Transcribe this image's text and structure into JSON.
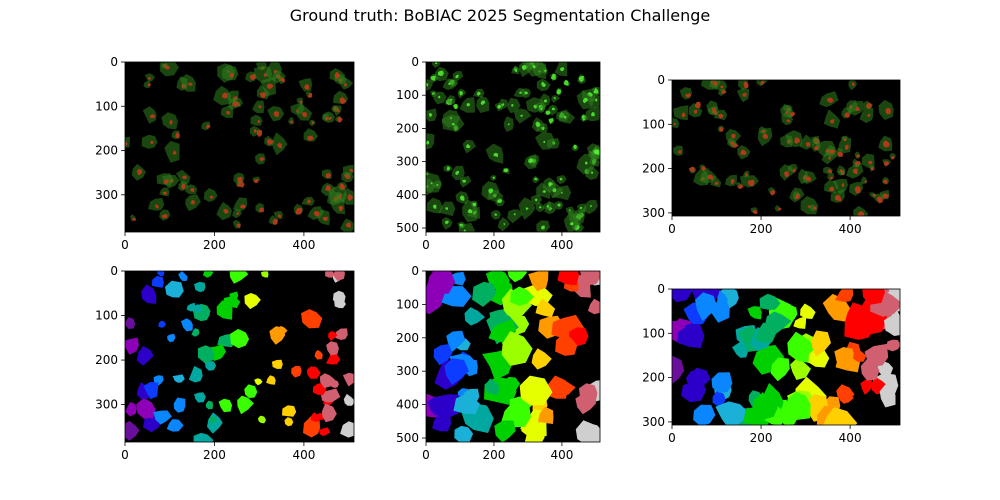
{
  "figure": {
    "title": "Ground truth: BoBIAC 2025 Segmentation Challenge"
  },
  "panels": [
    {
      "id": "p1",
      "kind": "image",
      "row": 1,
      "col": 1,
      "image_width": 512,
      "image_height": 384,
      "x_ticks": [
        0,
        200,
        400
      ],
      "y_ticks": [
        0,
        100,
        200,
        300
      ]
    },
    {
      "id": "p2",
      "kind": "image",
      "row": 1,
      "col": 2,
      "image_width": 512,
      "image_height": 512,
      "x_ticks": [
        0,
        200,
        400
      ],
      "y_ticks": [
        0,
        100,
        200,
        300,
        400,
        500
      ]
    },
    {
      "id": "p3",
      "kind": "image",
      "row": 1,
      "col": 3,
      "image_width": 512,
      "image_height": 307,
      "x_ticks": [
        0,
        200,
        400
      ],
      "y_ticks": [
        0,
        100,
        200,
        300
      ]
    },
    {
      "id": "p4",
      "kind": "mask",
      "row": 2,
      "col": 1,
      "image_width": 512,
      "image_height": 384,
      "x_ticks": [
        0,
        200,
        400
      ],
      "y_ticks": [
        0,
        100,
        200,
        300
      ]
    },
    {
      "id": "p5",
      "kind": "mask",
      "row": 2,
      "col": 2,
      "image_width": 512,
      "image_height": 512,
      "x_ticks": [
        0,
        200,
        400
      ],
      "y_ticks": [
        0,
        100,
        200,
        300,
        400,
        500
      ]
    },
    {
      "id": "p6",
      "kind": "mask",
      "row": 2,
      "col": 3,
      "image_width": 512,
      "image_height": 307,
      "x_ticks": [
        0,
        200,
        400
      ],
      "y_ticks": [
        0,
        100,
        200,
        300
      ]
    }
  ],
  "colors": {
    "background": "#000000",
    "microscopy_green": "#2f7f1e",
    "nucleus_red": "#c0391b",
    "label_palette": [
      "#6a0f9c",
      "#8d00b8",
      "#2c00c8",
      "#0b3cff",
      "#0a86ff",
      "#1ab0d8",
      "#00a8a0",
      "#00b060",
      "#00d000",
      "#39ff00",
      "#9cff00",
      "#e6ff00",
      "#ffd000",
      "#ff9a00",
      "#ff4000",
      "#ff0000",
      "#d06070",
      "#cfcfcf"
    ]
  }
}
